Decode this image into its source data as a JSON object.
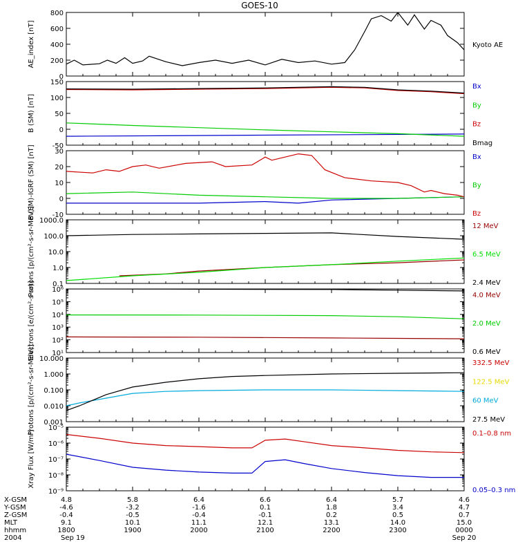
{
  "title": "GOES-10",
  "chart_data": [
    {
      "type": "line",
      "ylabel": "AE_index [nT]",
      "ylim": [
        0,
        800
      ],
      "yticks": [
        0,
        200,
        400,
        600,
        800
      ],
      "scale": "linear",
      "series": [
        {
          "name": "Kyoto AE",
          "color": "#000000",
          "x": [
            0,
            0.12,
            0.25,
            0.5,
            0.62,
            0.75,
            0.88,
            1.0,
            1.15,
            1.25,
            1.5,
            1.75,
            2.0,
            2.25,
            2.5,
            2.75,
            3.0,
            3.25,
            3.5,
            3.75,
            4.0,
            4.2,
            4.35,
            4.5,
            4.6,
            4.75,
            4.9,
            5.0,
            5.15,
            5.25,
            5.4,
            5.5,
            5.65,
            5.75,
            5.9,
            6.0
          ],
          "values": [
            150,
            200,
            140,
            155,
            200,
            160,
            230,
            160,
            190,
            250,
            180,
            130,
            170,
            200,
            160,
            200,
            140,
            210,
            170,
            190,
            150,
            170,
            330,
            560,
            720,
            760,
            690,
            800,
            640,
            770,
            590,
            700,
            640,
            510,
            420,
            330
          ]
        }
      ]
    },
    {
      "type": "line",
      "ylabel": "B (SM) [nT]",
      "ylim": [
        -50,
        150
      ],
      "yticks": [
        -50,
        0,
        50,
        100,
        150
      ],
      "scale": "linear",
      "series": [
        {
          "name": "Bx",
          "color": "#0000cc",
          "x": [
            0,
            6
          ],
          "values": [
            -22,
            -15
          ]
        },
        {
          "name": "By",
          "color": "#00cc00",
          "x": [
            0,
            1,
            2,
            3,
            4,
            5,
            6
          ],
          "values": [
            20,
            12,
            5,
            -2,
            -8,
            -14,
            -22
          ]
        },
        {
          "name": "Bz",
          "color": "#cc0000",
          "x": [
            0,
            1,
            2,
            3,
            4,
            4.5,
            5,
            5.5,
            6
          ],
          "values": [
            125,
            124,
            126,
            128,
            132,
            130,
            122,
            118,
            112
          ]
        },
        {
          "name": "Bmag",
          "color": "#000000",
          "x": [
            0,
            1,
            2,
            3,
            4,
            4.5,
            5,
            5.5,
            6
          ],
          "values": [
            127,
            126,
            128,
            130,
            134,
            132,
            124,
            120,
            114
          ]
        }
      ]
    },
    {
      "type": "line",
      "ylabel": "B (SM)-IGRF (SM) [nT]",
      "ylim": [
        -10,
        30
      ],
      "yticks": [
        -10,
        0,
        10,
        20,
        30
      ],
      "scale": "linear",
      "series": [
        {
          "name": "Bx",
          "color": "#0000cc",
          "x": [
            0,
            1,
            2,
            3,
            3.5,
            4,
            5,
            6
          ],
          "values": [
            -3,
            -3,
            -3,
            -2,
            -3,
            -1,
            0,
            1
          ]
        },
        {
          "name": "By",
          "color": "#00cc00",
          "x": [
            0,
            1,
            2,
            3,
            4,
            5,
            6
          ],
          "values": [
            3,
            4,
            2,
            1,
            0,
            0,
            1
          ]
        },
        {
          "name": "Bz",
          "color": "#cc0000",
          "x": [
            0,
            0.4,
            0.6,
            0.8,
            1.0,
            1.2,
            1.4,
            1.8,
            2.2,
            2.4,
            2.8,
            3.0,
            3.1,
            3.3,
            3.5,
            3.7,
            3.9,
            4.2,
            4.6,
            5.0,
            5.2,
            5.4,
            5.5,
            5.7,
            5.9,
            6.0
          ],
          "values": [
            17,
            16,
            18,
            17,
            20,
            21,
            19,
            22,
            23,
            20,
            21,
            26,
            24,
            26,
            28,
            27,
            18,
            13,
            11,
            10,
            8,
            4,
            5,
            3,
            2,
            1
          ]
        }
      ]
    },
    {
      "type": "line",
      "ylabel": "Protons [p/(cm²-s-sr-MeV)]",
      "ylim": [
        0.1,
        1000
      ],
      "yticks": [
        0.1,
        1.0,
        10.0,
        100.0,
        1000.0
      ],
      "ytick_labels": [
        "0.1",
        "1.0",
        "10.0",
        "100.0",
        "1000.0"
      ],
      "scale": "log",
      "series": [
        {
          "name": "12 MeV",
          "color": "#990000",
          "x": [
            0.8,
            1.5,
            2.0,
            3.0,
            4.0,
            5.0,
            6.0
          ],
          "values": [
            0.3,
            0.4,
            0.6,
            1.0,
            1.5,
            2.0,
            3.0
          ]
        },
        {
          "name": "6.5 MeV",
          "color": "#00dd00",
          "x": [
            0,
            1,
            2,
            3,
            4,
            5,
            6
          ],
          "values": [
            0.15,
            0.3,
            0.5,
            1.0,
            1.5,
            2.5,
            4.0
          ]
        },
        {
          "name": "2.4 MeV",
          "color": "#000000",
          "x": [
            0,
            1,
            2,
            3,
            4,
            5,
            6
          ],
          "values": [
            100,
            120,
            130,
            140,
            150,
            90,
            60
          ]
        }
      ]
    },
    {
      "type": "line",
      "ylabel": "Electrons [e/(cm²-s-sr)]",
      "ylim": [
        10,
        1000000
      ],
      "yticks": [
        10,
        100,
        1000,
        10000,
        100000,
        1000000
      ],
      "ytick_labels": [
        "10¹",
        "10²",
        "10³",
        "10⁴",
        "10⁵",
        "10⁶"
      ],
      "scale": "log",
      "series": [
        {
          "name": "4.0 MeV",
          "color": "#990000",
          "x": [
            0,
            2,
            4,
            5,
            6
          ],
          "values": [
            170,
            160,
            140,
            130,
            120
          ]
        },
        {
          "name": "2.0 MeV",
          "color": "#00cc00",
          "x": [
            0,
            2,
            4,
            5,
            6
          ],
          "values": [
            9000,
            8800,
            8000,
            6500,
            4500
          ]
        },
        {
          "name": "0.6 MeV",
          "color": "#000000",
          "x": [
            0,
            2,
            4,
            5,
            6
          ],
          "values": [
            1000000,
            950000,
            900000,
            800000,
            700000
          ]
        }
      ]
    },
    {
      "type": "line",
      "ylabel": "Protons [p/(cm²-s-sr-MeV)]",
      "ylim": [
        0.001,
        10
      ],
      "yticks": [
        0.001,
        0.01,
        0.1,
        1,
        10
      ],
      "ytick_labels": [
        "0.001",
        "0.010",
        "0.100",
        "1.000",
        "10.000"
      ],
      "scale": "log",
      "series": [
        {
          "name": "332.5 MeV",
          "color": "#cc0000",
          "x": [],
          "values": []
        },
        {
          "name": "122.5 MeV",
          "color": "#e6d800",
          "x": [],
          "values": []
        },
        {
          "name": "60 MeV",
          "color": "#00aadd",
          "x": [
            0,
            0.2,
            0.6,
            1.0,
            1.5,
            2.0,
            3.0,
            4.0,
            5.0,
            6.0
          ],
          "values": [
            0.01,
            0.015,
            0.03,
            0.06,
            0.08,
            0.09,
            0.1,
            0.1,
            0.09,
            0.08
          ]
        },
        {
          "name": "27.5 MeV",
          "color": "#000000",
          "x": [
            0,
            0.2,
            0.6,
            1.0,
            1.5,
            2.0,
            2.5,
            3.0,
            4.0,
            5.0,
            6.0
          ],
          "values": [
            0.005,
            0.01,
            0.05,
            0.15,
            0.3,
            0.5,
            0.7,
            0.8,
            1.0,
            1.1,
            1.2
          ]
        }
      ]
    },
    {
      "type": "line",
      "ylabel": "Xray Flux [W/m²]",
      "ylim": [
        1e-09,
        1e-05
      ],
      "yticks": [
        1e-09,
        1e-08,
        1e-07,
        1e-06,
        1e-05
      ],
      "ytick_labels": [
        "10⁻⁹",
        "10⁻⁸",
        "10⁻⁷",
        "10⁻⁶",
        "10⁻⁵"
      ],
      "scale": "log",
      "series": [
        {
          "name": "0.1–0.8 nm",
          "color": "#cc0000",
          "x": [
            0,
            0.5,
            1.0,
            1.5,
            2.0,
            2.5,
            2.8,
            3.0,
            3.3,
            3.6,
            4.0,
            4.5,
            5.0,
            5.5,
            6.0
          ],
          "values": [
            3.5e-06,
            2e-06,
            1e-06,
            7e-07,
            6e-07,
            5e-07,
            5e-07,
            1.5e-06,
            1.8e-06,
            1.2e-06,
            7e-07,
            5e-07,
            3.5e-07,
            2.8e-07,
            2.5e-07
          ]
        },
        {
          "name": "0.05–0.3 nm",
          "color": "#0000cc",
          "x": [
            0,
            0.5,
            1.0,
            1.5,
            2.0,
            2.5,
            2.8,
            3.0,
            3.3,
            3.6,
            4.0,
            4.5,
            5.0,
            5.5,
            6.0
          ],
          "values": [
            2e-07,
            8e-08,
            3e-08,
            2e-08,
            1.5e-08,
            1.3e-08,
            1.3e-08,
            7e-08,
            9e-08,
            5e-08,
            2.5e-08,
            1.4e-08,
            9e-09,
            7e-09,
            7e-09
          ]
        }
      ]
    }
  ],
  "right_labels": [
    [
      "Kyoto AE"
    ],
    [
      "Bx",
      "By",
      "Bz",
      "Bmag"
    ],
    [
      "Bx",
      "By",
      "Bz"
    ],
    [
      "12 MeV",
      "6.5 MeV",
      "2.4 MeV"
    ],
    [
      "4.0 MeV",
      "2.0 MeV",
      "0.6 MeV"
    ],
    [
      "332.5 MeV",
      "122.5 MeV",
      "60 MeV",
      "27.5 MeV"
    ],
    [
      "0.1–0.8 nm",
      "0.05–0.3 nm"
    ]
  ],
  "xaxis": {
    "row_labels": [
      "X-GSM",
      "Y-GSM",
      "Z-GSM",
      "MLT",
      "hhmm",
      "2004"
    ],
    "columns": [
      [
        "4.8",
        "-4.6",
        "-0.4",
        "9.1",
        "1800",
        "Sep 19"
      ],
      [
        "5.8",
        "-3.2",
        "-0.5",
        "10.1",
        "1900",
        ""
      ],
      [
        "6.4",
        "-1.6",
        "-0.4",
        "11.1",
        "2000",
        ""
      ],
      [
        "6.6",
        "0.1",
        "-0.1",
        "12.1",
        "2100",
        ""
      ],
      [
        "6.4",
        "1.8",
        "0.2",
        "13.1",
        "2200",
        ""
      ],
      [
        "5.7",
        "3.4",
        "0.5",
        "14.0",
        "2300",
        ""
      ],
      [
        "4.6",
        "4.7",
        "0.7",
        "15.0",
        "0000",
        "Sep 20"
      ]
    ]
  }
}
